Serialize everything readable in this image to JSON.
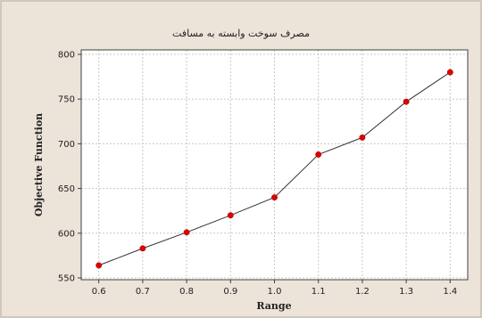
{
  "chart_data": {
    "type": "line",
    "title": "مصرف سوخت وابسته به مسافت",
    "xlabel": "Range",
    "ylabel": "Objective Function",
    "x": [
      0.6,
      0.7,
      0.8,
      0.9,
      1.0,
      1.1,
      1.2,
      1.3,
      1.4
    ],
    "x_tick_labels": [
      "0.6",
      "0.7",
      "0.8",
      "0.9",
      "1.0",
      "1.1",
      "1.2",
      "1.3",
      "1.4"
    ],
    "y_ticks": [
      550,
      600,
      650,
      700,
      750,
      800
    ],
    "y_tick_labels": [
      "550",
      "600",
      "650",
      "700",
      "750",
      "800"
    ],
    "ylim": [
      548,
      805
    ],
    "xlim": [
      0.56,
      1.44
    ],
    "grid": true,
    "series": [
      {
        "values": [
          564,
          583,
          601,
          620,
          640,
          688,
          707,
          747,
          780
        ],
        "line_color": "#333333",
        "marker_color": "#e00000"
      }
    ],
    "colors": {
      "outer_background": "#ece3d9",
      "plot_background": "#ffffff",
      "grid": "#c8c8c8",
      "axis": "#404040"
    }
  }
}
